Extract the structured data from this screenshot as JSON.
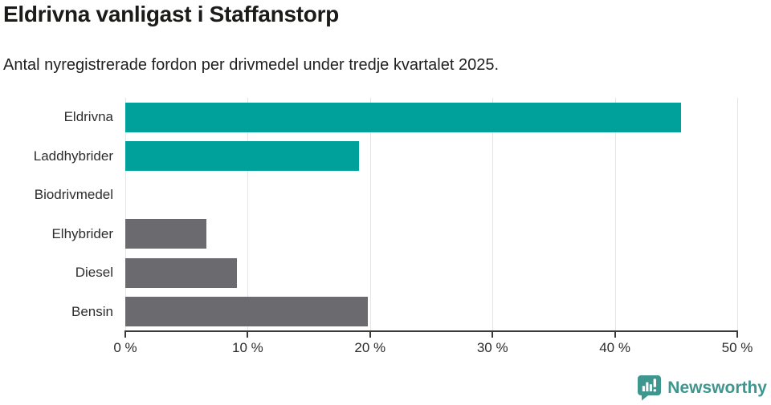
{
  "chart_data": {
    "type": "bar",
    "orientation": "horizontal",
    "title": "Eldrivna vanligast i Staffanstorp",
    "subtitle": "Antal nyregistrerade fordon per drivmedel under tredje kvartalet 2025.",
    "categories": [
      "Eldrivna",
      "Laddhybrider",
      "Biodrivmedel",
      "Elhybrider",
      "Diesel",
      "Bensin"
    ],
    "values": [
      45.4,
      19.1,
      0,
      6.6,
      9.1,
      19.8
    ],
    "unit": "%",
    "bar_colors": [
      "#00a19a",
      "#00a19a",
      "#6b6a6f",
      "#6b6a6f",
      "#6b6a6f",
      "#6b6a6f"
    ],
    "xlim": [
      0,
      50
    ],
    "x_ticks": [
      0,
      10,
      20,
      30,
      40,
      50
    ],
    "x_tick_labels": [
      "0 %",
      "10 %",
      "20 %",
      "30 %",
      "40 %",
      "50 %"
    ],
    "grid": true,
    "legend": false
  },
  "footer": {
    "brand": "Newsworthy",
    "logo_icon": "newsworthy-speech-bubble-bar-chart-icon"
  },
  "colors": {
    "accent_teal": "#00a19a",
    "neutral_gray": "#6b6a6f",
    "brand_teal": "#3e968f",
    "axis": "#3a3a3a",
    "gridline": "#e3e4e4",
    "title_text": "#1b1b19"
  }
}
